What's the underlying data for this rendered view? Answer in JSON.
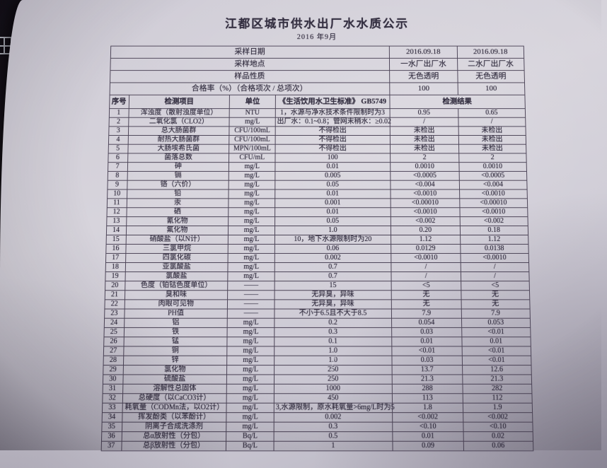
{
  "colors": {
    "backdrop": "#1c161d",
    "paper": "#d2cfd8",
    "table_line": "#4e4659",
    "ink": "#332e40"
  },
  "icons": {
    "left_edge": "window-grid-icon"
  },
  "page": {
    "title": "江都区城市供水出厂水水质公示",
    "subtitle": "2016 年9月"
  },
  "meta_rows": [
    {
      "label": "采样日期",
      "values": [
        "2016.09.18",
        "2016.09.18"
      ]
    },
    {
      "label": "采样地点",
      "values": [
        "一水厂出厂水",
        "二水厂出厂水"
      ]
    },
    {
      "label": "样品性质",
      "values": [
        "无色透明",
        "无色透明"
      ]
    },
    {
      "label": "合格率（%）（合格项次 / 总项次）",
      "values": [
        "100",
        "100"
      ]
    }
  ],
  "table": {
    "headers": {
      "no": "序号",
      "item": "检测项目",
      "unit": "单位",
      "standard": "《生活饮用水卫生标准》 GB5749",
      "result": "检测结果"
    },
    "rows": [
      {
        "no": "1",
        "item": "浑浊度（散射浊度单位）",
        "unit": "NTU",
        "standard": "1，水源与净水技术条件限制时为3",
        "results": [
          "0.95",
          "0.65"
        ]
      },
      {
        "no": "2",
        "item": "二氧化氯（CLO2）",
        "unit": "mg/L",
        "standard": "出厂水：0.1~0.8；管网末稍水：≥0.02",
        "results": [
          "/",
          "/"
        ]
      },
      {
        "no": "3",
        "item": "总大肠菌群",
        "unit": "CFU/100mL",
        "standard": "不得检出",
        "results": [
          "未检出",
          "未检出"
        ]
      },
      {
        "no": "4",
        "item": "耐热大肠菌群",
        "unit": "CFU/100mL",
        "standard": "不得检出",
        "results": [
          "未检出",
          "未检出"
        ]
      },
      {
        "no": "5",
        "item": "大肠埃希氏菌",
        "unit": "MPN/100mL",
        "standard": "不得检出",
        "results": [
          "未检出",
          "未检出"
        ]
      },
      {
        "no": "6",
        "item": "菌落总数",
        "unit": "CFU/mL",
        "standard": "100",
        "results": [
          "2",
          "2"
        ]
      },
      {
        "no": "7",
        "item": "砷",
        "unit": "mg/L",
        "standard": "0.01",
        "results": [
          "0.0010",
          "0.0010"
        ]
      },
      {
        "no": "8",
        "item": "镉",
        "unit": "mg/L",
        "standard": "0.005",
        "results": [
          "<0.0005",
          "<0.0005"
        ]
      },
      {
        "no": "9",
        "item": "铬（六价）",
        "unit": "mg/L",
        "standard": "0.05",
        "results": [
          "<0.004",
          "<0.004"
        ]
      },
      {
        "no": "10",
        "item": "铅",
        "unit": "mg/L",
        "standard": "0.01",
        "results": [
          "<0.0010",
          "<0.0010"
        ]
      },
      {
        "no": "11",
        "item": "汞",
        "unit": "mg/L",
        "standard": "0.001",
        "results": [
          "<0.00010",
          "<0.00010"
        ]
      },
      {
        "no": "12",
        "item": "硒",
        "unit": "mg/L",
        "standard": "0.01",
        "results": [
          "<0.0010",
          "<0.0010"
        ]
      },
      {
        "no": "13",
        "item": "氰化物",
        "unit": "mg/L",
        "standard": "0.05",
        "results": [
          "<0.002",
          "<0.002"
        ]
      },
      {
        "no": "14",
        "item": "氟化物",
        "unit": "mg/L",
        "standard": "1.0",
        "results": [
          "0.20",
          "0.18"
        ]
      },
      {
        "no": "15",
        "item": "硝酸盐（以N计）",
        "unit": "mg/L",
        "standard": "10，地下水源限制时为20",
        "results": [
          "1.12",
          "1.12"
        ]
      },
      {
        "no": "16",
        "item": "三氯甲烷",
        "unit": "mg/L",
        "standard": "0.06",
        "results": [
          "0.0129",
          "0.0138"
        ]
      },
      {
        "no": "17",
        "item": "四氯化碳",
        "unit": "mg/L",
        "standard": "0.002",
        "results": [
          "<0.0010",
          "<0.0010"
        ]
      },
      {
        "no": "18",
        "item": "亚氯酸盐",
        "unit": "mg/L",
        "standard": "0.7",
        "results": [
          "/",
          "/"
        ]
      },
      {
        "no": "19",
        "item": "氯酸盐",
        "unit": "mg/L",
        "standard": "0.7",
        "results": [
          "/",
          "/"
        ]
      },
      {
        "no": "20",
        "item": "色度（铂钴色度单位）",
        "unit": "——",
        "standard": "15",
        "results": [
          "<5",
          "<5"
        ]
      },
      {
        "no": "21",
        "item": "臭和味",
        "unit": "——",
        "standard": "无异臭，异味",
        "results": [
          "无",
          "无"
        ]
      },
      {
        "no": "22",
        "item": "肉眼可见物",
        "unit": "——",
        "standard": "无异臭，异味",
        "results": [
          "无",
          "无"
        ]
      },
      {
        "no": "23",
        "item": "PH值",
        "unit": "——",
        "standard": "不小于6.5且不大于8.5",
        "results": [
          "7.9",
          "7.9"
        ]
      },
      {
        "no": "24",
        "item": "铝",
        "unit": "mg/L",
        "standard": "0.2",
        "results": [
          "0.054",
          "0.053"
        ]
      },
      {
        "no": "25",
        "item": "铁",
        "unit": "mg/L",
        "standard": "0.3",
        "results": [
          "0.03",
          "<0.01"
        ]
      },
      {
        "no": "26",
        "item": "锰",
        "unit": "mg/L",
        "standard": "0.1",
        "results": [
          "0.01",
          "0.01"
        ]
      },
      {
        "no": "27",
        "item": "铜",
        "unit": "mg/L",
        "standard": "1.0",
        "results": [
          "<0.01",
          "<0.01"
        ]
      },
      {
        "no": "28",
        "item": "锌",
        "unit": "mg/L",
        "standard": "1.0",
        "results": [
          "0.03",
          "<0.01"
        ]
      },
      {
        "no": "29",
        "item": "氯化物",
        "unit": "mg/L",
        "standard": "250",
        "results": [
          "13.7",
          "12.6"
        ]
      },
      {
        "no": "30",
        "item": "硫酸盐",
        "unit": "mg/L",
        "standard": "250",
        "results": [
          "21.3",
          "21.3"
        ]
      },
      {
        "no": "31",
        "item": "溶解性总固体",
        "unit": "mg/L",
        "standard": "1000",
        "results": [
          "288",
          "282"
        ]
      },
      {
        "no": "32",
        "item": "总硬度（以CaCO3计）",
        "unit": "mg/L",
        "standard": "450",
        "results": [
          "113",
          "112"
        ]
      },
      {
        "no": "33",
        "item": "耗氧量（CODMn法，以O2计）",
        "unit": "mg/L",
        "standard": "3,水源限制，原水耗氧量>6mg/L时为5",
        "results": [
          "1.8",
          "1.9"
        ]
      },
      {
        "no": "34",
        "item": "挥发酚类（以苯酚计）",
        "unit": "mg/L",
        "standard": "0.002",
        "results": [
          "<0.002",
          "<0.002"
        ]
      },
      {
        "no": "35",
        "item": "阴离子合成洗涤剂",
        "unit": "mg/L",
        "standard": "0.3",
        "results": [
          "<0.10",
          "<0.10"
        ]
      },
      {
        "no": "36",
        "item": "总α放射性（分包）",
        "unit": "Bq/L",
        "standard": "0.5",
        "results": [
          "0.01",
          "0.02"
        ]
      },
      {
        "no": "37",
        "item": "总β放射性（分包）",
        "unit": "Bq/L",
        "standard": "1",
        "results": [
          "0.09",
          "0.06"
        ]
      }
    ]
  }
}
